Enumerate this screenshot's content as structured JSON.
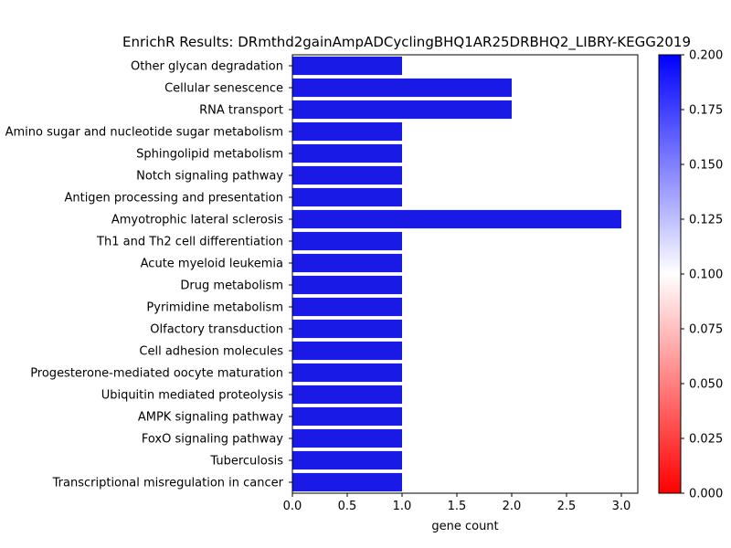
{
  "chart_data": {
    "type": "bar",
    "orientation": "horizontal",
    "title": "EnrichR Results: DRmthd2gainAmpADCyclingBHQ1AR25DRBHQ2_LIBRY-KEGG2019",
    "xlabel": "gene count",
    "ylabel": "",
    "xlim": [
      0,
      3.15
    ],
    "xticks": [
      "0.0",
      "0.5",
      "1.0",
      "1.5",
      "2.0",
      "2.5",
      "3.0"
    ],
    "categories": [
      "Other glycan degradation",
      "Cellular senescence",
      "RNA transport",
      "Amino sugar and nucleotide sugar metabolism",
      "Sphingolipid metabolism",
      "Notch signaling pathway",
      "Antigen processing and presentation",
      "Amyotrophic lateral sclerosis",
      "Th1 and Th2 cell differentiation",
      "Acute myeloid leukemia",
      "Drug metabolism",
      "Pyrimidine metabolism",
      "Olfactory transduction",
      "Cell adhesion molecules",
      "Progesterone-mediated oocyte maturation",
      "Ubiquitin mediated proteolysis",
      "AMPK signaling pathway",
      "FoxO signaling pathway",
      "Tuberculosis",
      "Transcriptional misregulation in cancer"
    ],
    "values": [
      1,
      2,
      2,
      1,
      1,
      1,
      1,
      3,
      1,
      1,
      1,
      1,
      1,
      1,
      1,
      1,
      1,
      1,
      1,
      1
    ],
    "bar_color": "#1a1ae6",
    "colorbar": {
      "range": [
        0.0,
        0.2
      ],
      "ticks": [
        "0.000",
        "0.025",
        "0.050",
        "0.075",
        "0.100",
        "0.125",
        "0.150",
        "0.175",
        "0.200"
      ],
      "colors": [
        "#ff0000",
        "#ffffff",
        "#0000ff"
      ]
    }
  }
}
